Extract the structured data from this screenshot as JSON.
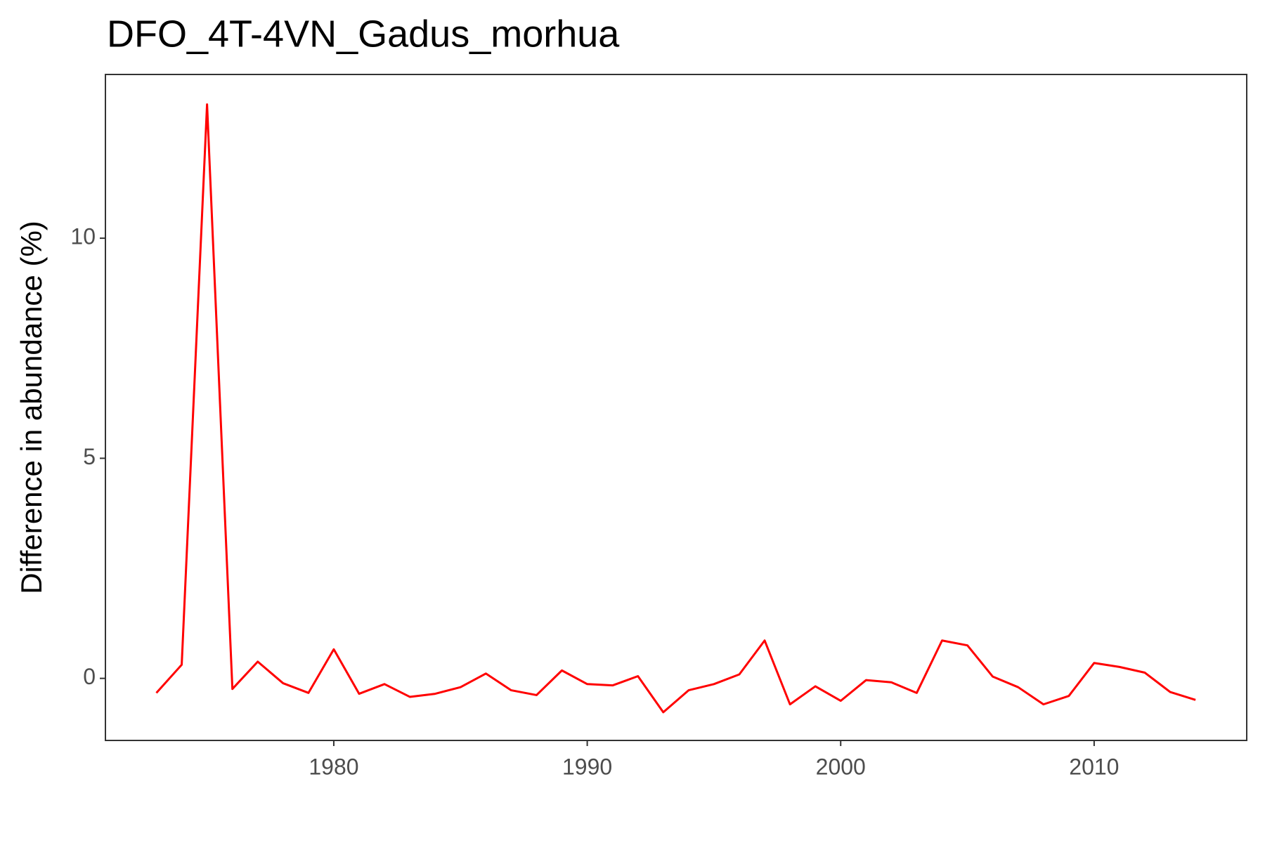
{
  "chart_data": {
    "type": "line",
    "title": "DFO_4T-4VN_Gadus_morhua",
    "y_label": "Difference in abundance (%)",
    "x": [
      1973,
      1974,
      1975,
      1976,
      1977,
      1978,
      1979,
      1980,
      1981,
      1982,
      1983,
      1984,
      1985,
      1986,
      1987,
      1988,
      1989,
      1990,
      1991,
      1992,
      1993,
      1994,
      1995,
      1996,
      1997,
      1998,
      1999,
      2000,
      2001,
      2002,
      2003,
      2004,
      2005,
      2006,
      2007,
      2008,
      2009,
      2010,
      2011,
      2012,
      2013,
      2014
    ],
    "series": [
      {
        "name": "Difference",
        "color": "#ff0000",
        "values": [
          -0.33,
          0.31,
          13.04,
          -0.24,
          0.38,
          -0.11,
          -0.33,
          0.66,
          -0.35,
          -0.13,
          -0.42,
          -0.35,
          -0.2,
          0.11,
          -0.27,
          -0.38,
          0.18,
          -0.13,
          -0.16,
          0.05,
          -0.77,
          -0.27,
          -0.13,
          0.09,
          0.86,
          -0.59,
          -0.18,
          -0.51,
          -0.04,
          -0.09,
          -0.33,
          0.86,
          0.75,
          0.04,
          -0.2,
          -0.59,
          -0.4,
          0.35,
          0.26,
          0.13,
          -0.31,
          -0.49
        ]
      }
    ],
    "xlim": [
      1970.99,
      2016.02
    ],
    "xticks": [
      1980,
      1990,
      2000,
      2010
    ],
    "ylim": [
      -1.41,
      13.72
    ],
    "yticks": [
      0,
      5,
      10
    ],
    "grid": false
  }
}
